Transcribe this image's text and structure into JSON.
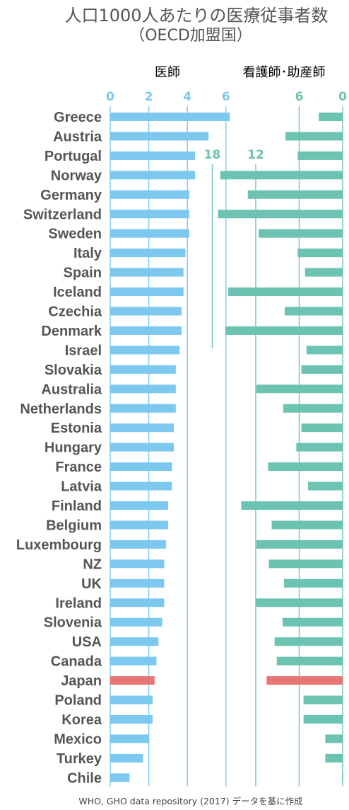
{
  "title_line1": "人口1000人あたりの医療従事者数",
  "title_line2": "（OECD加盟国）",
  "source": "WHO, GHO data repository (2017) データを基に作成",
  "colors": {
    "doctors": "#7cc8ef",
    "nurses": "#6cc3b2",
    "highlight": "#e87575",
    "label": "#555555"
  },
  "chart_data": {
    "type": "bar",
    "highlight_category": "Japan",
    "categories": [
      "Greece",
      "Austria",
      "Portugal",
      "Norway",
      "Germany",
      "Switzerland",
      "Sweden",
      "Italy",
      "Spain",
      "Iceland",
      "Czechia",
      "Denmark",
      "Israel",
      "Slovakia",
      "Australia",
      "Netherlands",
      "Estonia",
      "Hungary",
      "France",
      "Latvia",
      "Finland",
      "Belgium",
      "Luxembourg",
      "NZ",
      "UK",
      "Ireland",
      "Slovenia",
      "USA",
      "Canada",
      "Japan",
      "Poland",
      "Korea",
      "Mexico",
      "Turkey",
      "Chile"
    ],
    "series": [
      {
        "name": "医師",
        "values": [
          6.2,
          5.1,
          4.4,
          4.4,
          4.1,
          4.1,
          4.1,
          3.9,
          3.8,
          3.8,
          3.7,
          3.7,
          3.6,
          3.4,
          3.4,
          3.4,
          3.3,
          3.3,
          3.2,
          3.2,
          3.0,
          3.0,
          2.9,
          2.8,
          2.8,
          2.8,
          2.7,
          2.5,
          2.4,
          2.3,
          2.2,
          2.2,
          2.0,
          1.7,
          1.0
        ],
        "axis_ticks": [
          0,
          2,
          4,
          6
        ]
      },
      {
        "name": "看護師･助産師",
        "values": [
          3.3,
          7.9,
          6.2,
          16.9,
          13.1,
          17.2,
          11.6,
          6.2,
          5.2,
          15.8,
          8.0,
          16.2,
          5.0,
          5.7,
          11.9,
          8.2,
          5.7,
          6.4,
          10.3,
          4.8,
          14.0,
          9.8,
          11.9,
          10.2,
          8.1,
          12.0,
          8.3,
          9.4,
          9.1,
          10.5,
          5.4,
          5.4,
          2.4,
          2.4,
          0.1
        ],
        "axis_ticks": [
          0,
          6,
          12,
          18
        ]
      }
    ]
  }
}
